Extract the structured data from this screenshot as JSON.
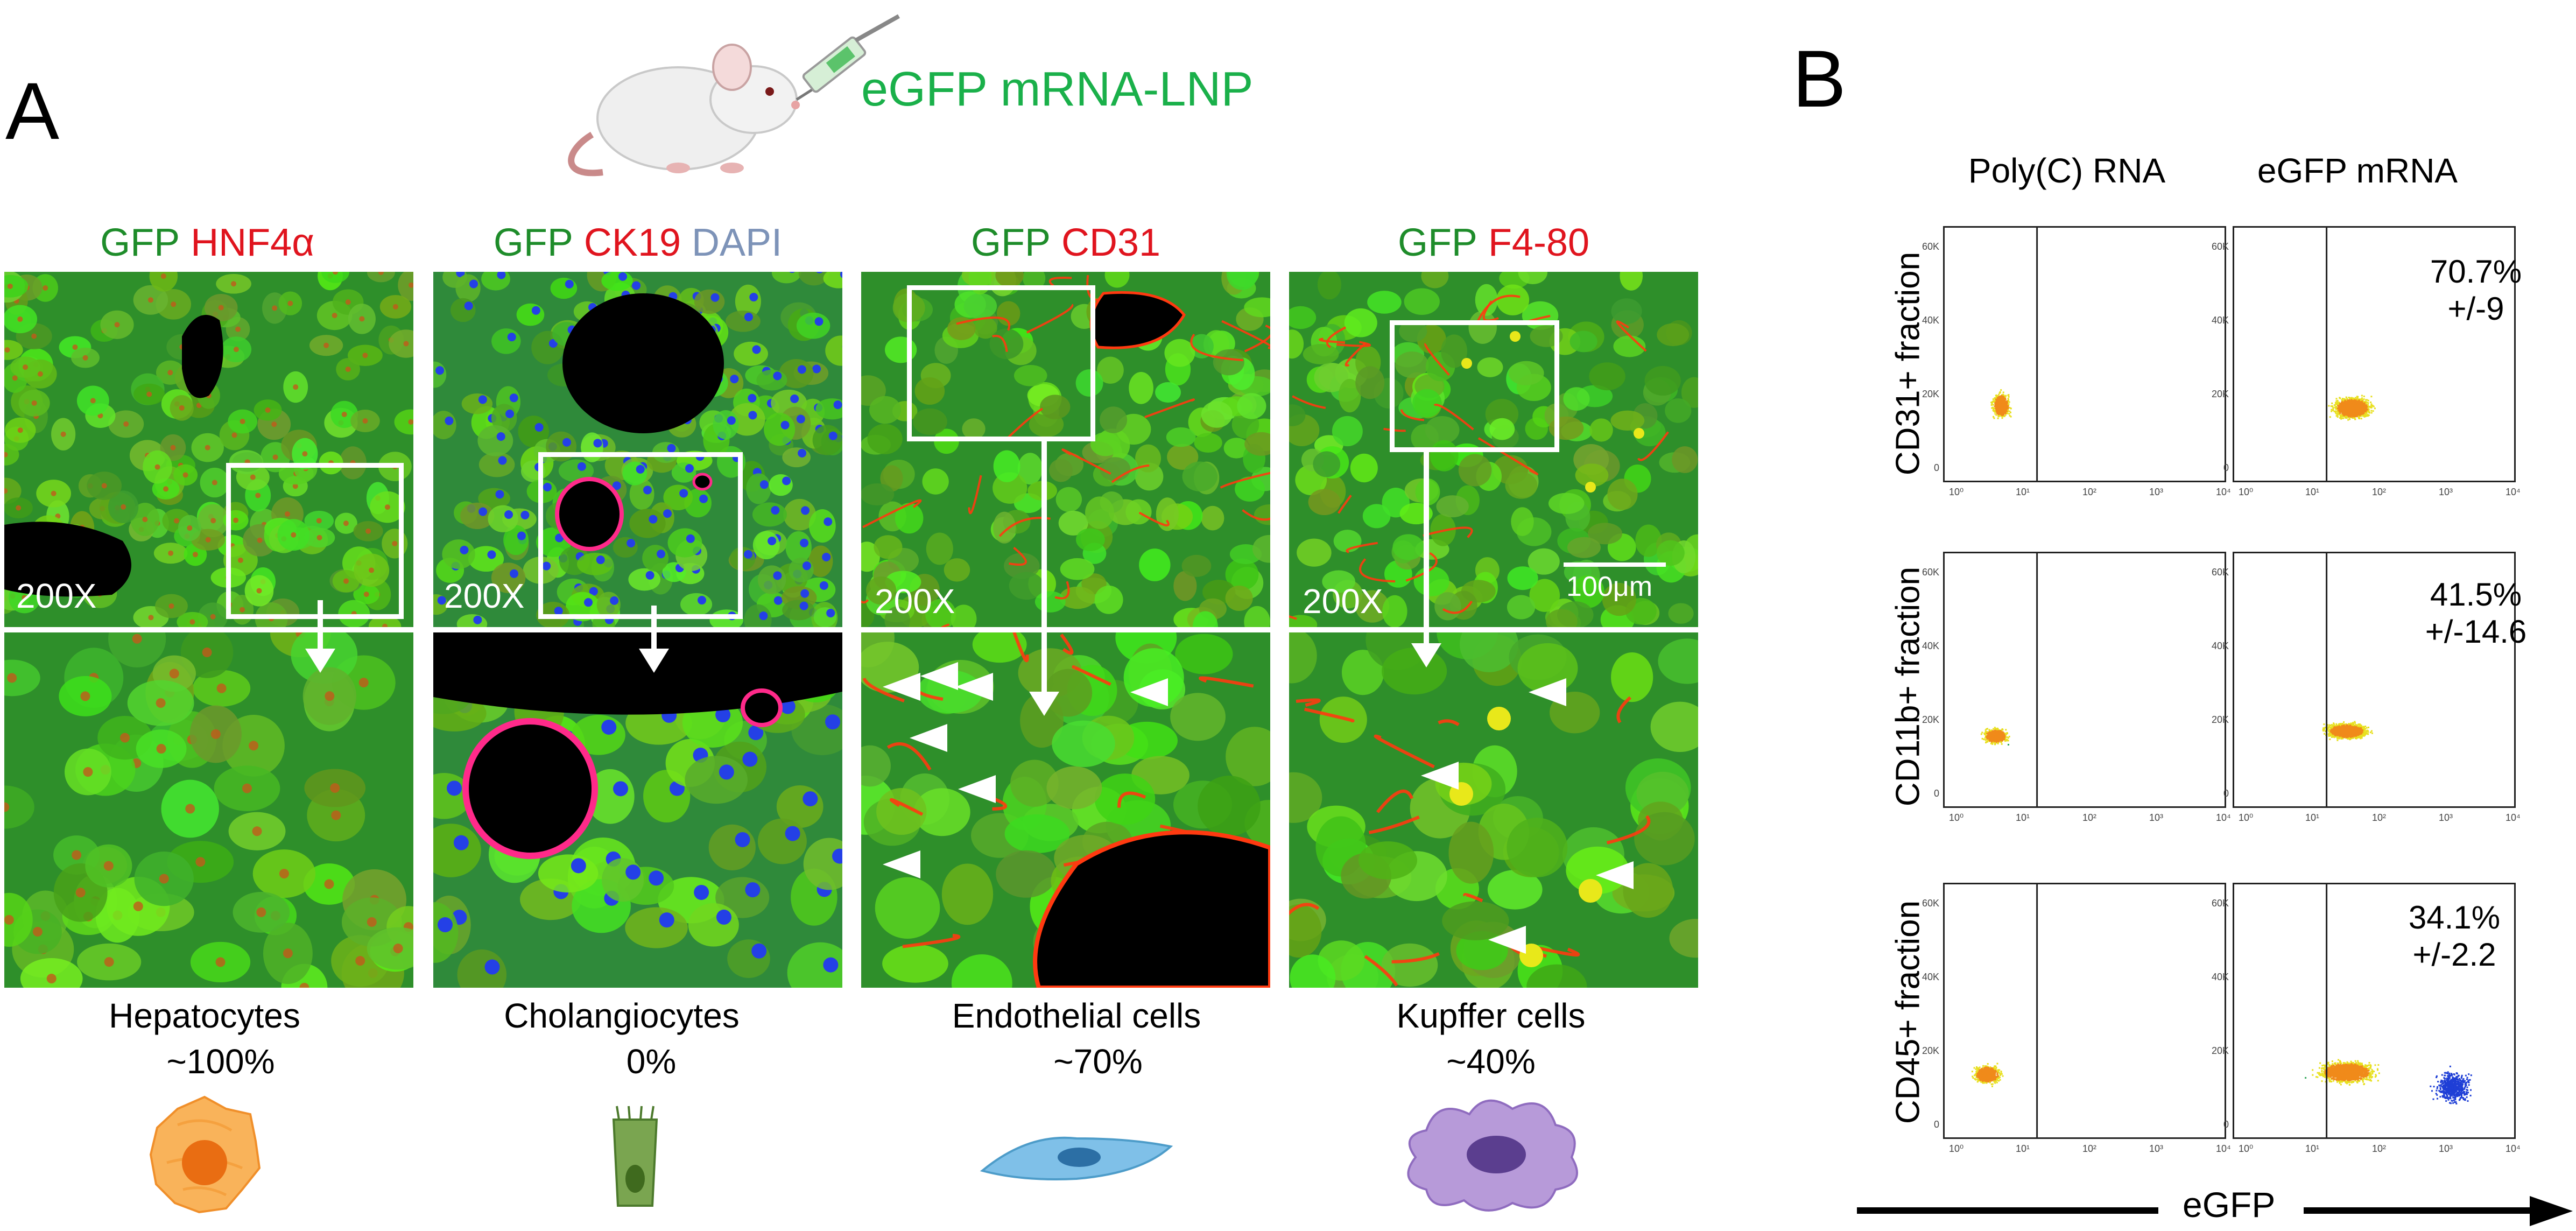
{
  "panel_a": {
    "letter": "A",
    "injection_label": "eGFP mRNA-LNP",
    "columns": [
      {
        "stains": [
          {
            "text": "GFP",
            "color": "#1e8c2a"
          },
          {
            "text": "HNF4α",
            "color": "#e0141e"
          }
        ],
        "magnification": "200X",
        "cell_type": "Hepatocytes",
        "percent": "~100%",
        "kind": "hep"
      },
      {
        "stains": [
          {
            "text": "GFP",
            "color": "#1e8c2a"
          },
          {
            "text": "CK19",
            "color": "#e0141e"
          },
          {
            "text": "DAPI",
            "color": "#7d93b8"
          }
        ],
        "magnification": "200X",
        "cell_type": "Cholangiocytes",
        "percent": "0%",
        "kind": "chol"
      },
      {
        "stains": [
          {
            "text": "GFP",
            "color": "#1e8c2a"
          },
          {
            "text": "CD31",
            "color": "#e0141e"
          }
        ],
        "magnification": "200X",
        "cell_type": "Endothelial cells",
        "percent": "~70%",
        "kind": "endo"
      },
      {
        "stains": [
          {
            "text": "GFP",
            "color": "#1e8c2a"
          },
          {
            "text": "F4-80",
            "color": "#e0141e"
          }
        ],
        "magnification": "200X",
        "cell_type": "Kupffer cells",
        "percent": "~40%",
        "kind": "kup"
      }
    ],
    "scale_bar_label": "100μm"
  },
  "panel_b": {
    "letter": "B",
    "column_headers": [
      "Poly(C) RNA",
      "eGFP mRNA"
    ],
    "row_labels": [
      "CD31+ fraction",
      "CD11b+ fraction",
      "CD45+ fraction"
    ],
    "percentages": [
      {
        "value": "70.7%",
        "sd": "+/-9"
      },
      {
        "value": "41.5%",
        "sd": "+/-14.6"
      },
      {
        "value": "34.1%",
        "sd": "+/-2.2"
      }
    ],
    "x_axis_label": "eGFP",
    "y_ticks": [
      "60K",
      "40K",
      "20K",
      "0"
    ],
    "x_ticks": [
      "10⁰",
      "10¹",
      "10²",
      "10³",
      "10⁴"
    ]
  }
}
